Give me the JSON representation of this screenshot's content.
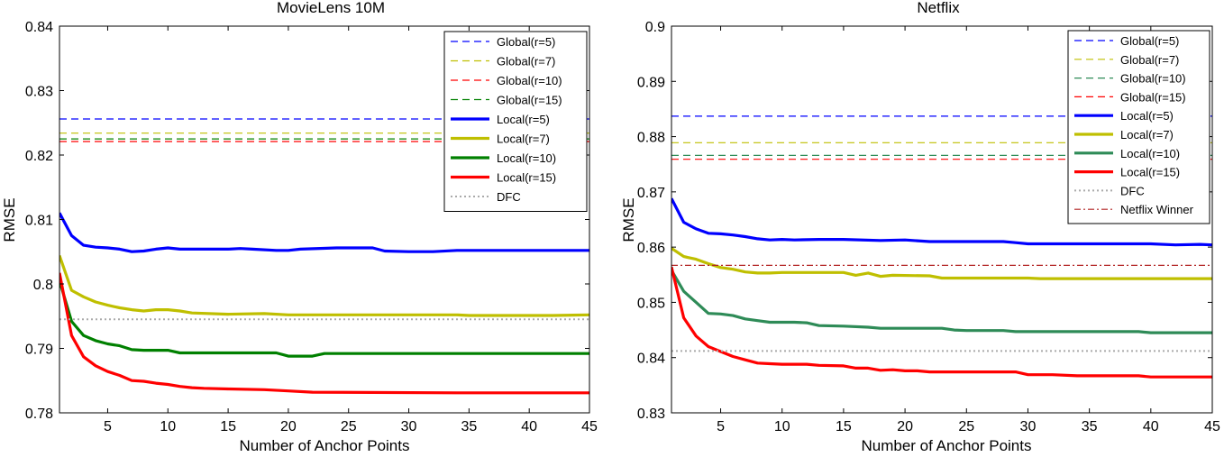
{
  "chart_data": [
    {
      "type": "line",
      "title": "MovieLens 10M",
      "xlabel": "Number of Anchor Points",
      "ylabel": "RMSE",
      "xlim": [
        1,
        45
      ],
      "ylim": [
        0.78,
        0.84
      ],
      "xticks": [
        5,
        10,
        15,
        20,
        25,
        30,
        35,
        40,
        45
      ],
      "xtick_labels": [
        "5",
        "10",
        "15",
        "20",
        "25",
        "30",
        "35",
        "40",
        "45"
      ],
      "yticks": [
        0.78,
        0.79,
        0.8,
        0.81,
        0.82,
        0.83,
        0.84
      ],
      "ytick_labels": [
        "0.78",
        "0.79",
        "0.8",
        "0.81",
        "0.82",
        "0.83",
        "0.84"
      ],
      "legend_position": "top-right",
      "series": [
        {
          "name": "Global(r=5)",
          "color": "#0000ff",
          "style": "dashed",
          "width": "thin",
          "values": [
            [
              1,
              0.8256
            ],
            [
              45,
              0.8256
            ]
          ]
        },
        {
          "name": "Global(r=7)",
          "color": "#bfbf00",
          "style": "dashed",
          "width": "thin",
          "values": [
            [
              1,
              0.8234
            ],
            [
              45,
              0.8234
            ]
          ]
        },
        {
          "name": "Global(r=10)",
          "color": "#ff0000",
          "style": "dashed",
          "width": "thin",
          "values": [
            [
              1,
              0.8221
            ],
            [
              45,
              0.8221
            ]
          ]
        },
        {
          "name": "Global(r=15)",
          "color": "#008000",
          "style": "dashed",
          "width": "thin",
          "values": [
            [
              1,
              0.8225
            ],
            [
              45,
              0.8225
            ]
          ]
        },
        {
          "name": "Local(r=5)",
          "color": "#0000ff",
          "style": "solid",
          "width": "thick",
          "values": [
            [
              1,
              0.811
            ],
            [
              2,
              0.8075
            ],
            [
              3,
              0.806
            ],
            [
              4,
              0.8057
            ],
            [
              5,
              0.8056
            ],
            [
              6,
              0.8054
            ],
            [
              7,
              0.805
            ],
            [
              8,
              0.8051
            ],
            [
              9,
              0.8054
            ],
            [
              10,
              0.8056
            ],
            [
              11,
              0.8054
            ],
            [
              15,
              0.8054
            ],
            [
              16,
              0.8055
            ],
            [
              17,
              0.8054
            ],
            [
              19,
              0.8052
            ],
            [
              20,
              0.8052
            ],
            [
              21,
              0.8054
            ],
            [
              24,
              0.8056
            ],
            [
              27,
              0.8056
            ],
            [
              28,
              0.8051
            ],
            [
              30,
              0.805
            ],
            [
              32,
              0.805
            ],
            [
              34,
              0.8052
            ],
            [
              45,
              0.8052
            ]
          ]
        },
        {
          "name": "Local(r=7)",
          "color": "#bfbf00",
          "style": "solid",
          "width": "thick",
          "values": [
            [
              1,
              0.8044
            ],
            [
              2,
              0.799
            ],
            [
              3,
              0.798
            ],
            [
              4,
              0.7972
            ],
            [
              5,
              0.7967
            ],
            [
              6,
              0.7963
            ],
            [
              7,
              0.796
            ],
            [
              8,
              0.7958
            ],
            [
              9,
              0.796
            ],
            [
              10,
              0.796
            ],
            [
              11,
              0.7958
            ],
            [
              12,
              0.7955
            ],
            [
              15,
              0.7953
            ],
            [
              18,
              0.7954
            ],
            [
              20,
              0.7952
            ],
            [
              25,
              0.7952
            ],
            [
              34,
              0.7952
            ],
            [
              35,
              0.7951
            ],
            [
              42,
              0.7951
            ],
            [
              45,
              0.7952
            ]
          ]
        },
        {
          "name": "Local(r=10)",
          "color": "#008000",
          "style": "solid",
          "width": "thick",
          "values": [
            [
              1,
              0.8005
            ],
            [
              2,
              0.7942
            ],
            [
              3,
              0.792
            ],
            [
              4,
              0.7912
            ],
            [
              5,
              0.7907
            ],
            [
              6,
              0.7904
            ],
            [
              7,
              0.7898
            ],
            [
              8,
              0.7897
            ],
            [
              10,
              0.7897
            ],
            [
              11,
              0.7893
            ],
            [
              19,
              0.7893
            ],
            [
              20,
              0.7888
            ],
            [
              22,
              0.7888
            ],
            [
              23,
              0.7892
            ],
            [
              45,
              0.7892
            ]
          ]
        },
        {
          "name": "Local(r=15)",
          "color": "#ff0000",
          "style": "solid",
          "width": "thick",
          "values": [
            [
              1,
              0.8017
            ],
            [
              2,
              0.792
            ],
            [
              3,
              0.7887
            ],
            [
              4,
              0.7873
            ],
            [
              5,
              0.7864
            ],
            [
              6,
              0.7858
            ],
            [
              7,
              0.785
            ],
            [
              8,
              0.7849
            ],
            [
              9,
              0.7846
            ],
            [
              10,
              0.7844
            ],
            [
              11,
              0.7841
            ],
            [
              12,
              0.7839
            ],
            [
              13,
              0.7838
            ],
            [
              15,
              0.7837
            ],
            [
              18,
              0.7836
            ],
            [
              20,
              0.7834
            ],
            [
              22,
              0.7832
            ],
            [
              34,
              0.7831
            ],
            [
              45,
              0.7831
            ]
          ]
        },
        {
          "name": "DFC",
          "color": "#aaaaaa",
          "style": "dotted",
          "width": "medium",
          "values": [
            [
              1,
              0.7945
            ],
            [
              45,
              0.7945
            ]
          ]
        }
      ]
    },
    {
      "type": "line",
      "title": "Netflix",
      "xlabel": "Number of Anchor Points",
      "ylabel": "RMSE",
      "xlim": [
        1,
        45
      ],
      "ylim": [
        0.83,
        0.9
      ],
      "xticks": [
        5,
        10,
        15,
        20,
        25,
        30,
        35,
        40,
        45
      ],
      "xtick_labels": [
        "5",
        "10",
        "15",
        "20",
        "25",
        "30",
        "35",
        "40",
        "45"
      ],
      "yticks": [
        0.83,
        0.84,
        0.85,
        0.86,
        0.87,
        0.88,
        0.89,
        0.9
      ],
      "ytick_labels": [
        "0.83",
        "0.84",
        "0.85",
        "0.86",
        "0.87",
        "0.88",
        "0.89",
        "0.9"
      ],
      "legend_position": "top-right",
      "series": [
        {
          "name": "Global(r=5)",
          "color": "#0000ff",
          "style": "dashed",
          "width": "thin",
          "values": [
            [
              1,
              0.8837
            ],
            [
              45,
              0.8837
            ]
          ]
        },
        {
          "name": "Global(r=7)",
          "color": "#bfbf00",
          "style": "dashed",
          "width": "thin",
          "values": [
            [
              1,
              0.8789
            ],
            [
              45,
              0.8789
            ]
          ]
        },
        {
          "name": "Global(r=10)",
          "color": "#2e8b57",
          "style": "dashed",
          "width": "thin",
          "values": [
            [
              1,
              0.8766
            ],
            [
              45,
              0.8766
            ]
          ]
        },
        {
          "name": "Global(r=15)",
          "color": "#ff0000",
          "style": "dashed",
          "width": "thin",
          "values": [
            [
              1,
              0.8759
            ],
            [
              45,
              0.8759
            ]
          ]
        },
        {
          "name": "Local(r=5)",
          "color": "#0000ff",
          "style": "solid",
          "width": "thick",
          "values": [
            [
              1,
              0.8688
            ],
            [
              2,
              0.8645
            ],
            [
              3,
              0.8633
            ],
            [
              4,
              0.8625
            ],
            [
              5,
              0.8624
            ],
            [
              6,
              0.8622
            ],
            [
              7,
              0.8619
            ],
            [
              8,
              0.8615
            ],
            [
              9,
              0.8613
            ],
            [
              10,
              0.8614
            ],
            [
              11,
              0.8613
            ],
            [
              13,
              0.8614
            ],
            [
              15,
              0.8614
            ],
            [
              18,
              0.8612
            ],
            [
              20,
              0.8613
            ],
            [
              22,
              0.861
            ],
            [
              28,
              0.861
            ],
            [
              29,
              0.8608
            ],
            [
              30,
              0.8606
            ],
            [
              40,
              0.8606
            ],
            [
              42,
              0.8604
            ],
            [
              44,
              0.8605
            ],
            [
              45,
              0.8604
            ]
          ]
        },
        {
          "name": "Local(r=7)",
          "color": "#bfbf00",
          "style": "solid",
          "width": "thick",
          "values": [
            [
              1,
              0.8598
            ],
            [
              2,
              0.8583
            ],
            [
              3,
              0.8578
            ],
            [
              4,
              0.857
            ],
            [
              5,
              0.8563
            ],
            [
              6,
              0.856
            ],
            [
              7,
              0.8555
            ],
            [
              8,
              0.8553
            ],
            [
              9,
              0.8553
            ],
            [
              10,
              0.8554
            ],
            [
              15,
              0.8554
            ],
            [
              16,
              0.8549
            ],
            [
              17,
              0.8553
            ],
            [
              18,
              0.8547
            ],
            [
              19,
              0.8549
            ],
            [
              22,
              0.8548
            ],
            [
              23,
              0.8544
            ],
            [
              30,
              0.8544
            ],
            [
              31,
              0.8543
            ],
            [
              45,
              0.8543
            ]
          ]
        },
        {
          "name": "Local(r=10)",
          "color": "#2e8b57",
          "style": "solid",
          "width": "thick",
          "values": [
            [
              1,
              0.8558
            ],
            [
              2,
              0.852
            ],
            [
              3,
              0.85
            ],
            [
              4,
              0.848
            ],
            [
              5,
              0.8479
            ],
            [
              6,
              0.8476
            ],
            [
              7,
              0.847
            ],
            [
              8,
              0.8467
            ],
            [
              9,
              0.8464
            ],
            [
              11,
              0.8464
            ],
            [
              12,
              0.8463
            ],
            [
              13,
              0.8458
            ],
            [
              15,
              0.8457
            ],
            [
              17,
              0.8455
            ],
            [
              18,
              0.8453
            ],
            [
              23,
              0.8453
            ],
            [
              24,
              0.845
            ],
            [
              25,
              0.8449
            ],
            [
              28,
              0.8449
            ],
            [
              29,
              0.8447
            ],
            [
              39,
              0.8447
            ],
            [
              40,
              0.8445
            ],
            [
              45,
              0.8445
            ]
          ]
        },
        {
          "name": "Local(r=15)",
          "color": "#ff0000",
          "style": "solid",
          "width": "thick",
          "values": [
            [
              1,
              0.8564
            ],
            [
              2,
              0.8472
            ],
            [
              3,
              0.8439
            ],
            [
              4,
              0.842
            ],
            [
              5,
              0.8411
            ],
            [
              6,
              0.8402
            ],
            [
              7,
              0.8396
            ],
            [
              8,
              0.839
            ],
            [
              9,
              0.8389
            ],
            [
              10,
              0.8388
            ],
            [
              12,
              0.8388
            ],
            [
              13,
              0.8386
            ],
            [
              15,
              0.8385
            ],
            [
              16,
              0.8381
            ],
            [
              17,
              0.8381
            ],
            [
              18,
              0.8377
            ],
            [
              19,
              0.8378
            ],
            [
              20,
              0.8376
            ],
            [
              21,
              0.8376
            ],
            [
              22,
              0.8374
            ],
            [
              29,
              0.8374
            ],
            [
              30,
              0.8369
            ],
            [
              32,
              0.8369
            ],
            [
              34,
              0.8367
            ],
            [
              39,
              0.8367
            ],
            [
              40,
              0.8365
            ],
            [
              45,
              0.8365
            ]
          ]
        },
        {
          "name": "DFC",
          "color": "#aaaaaa",
          "style": "dotted",
          "width": "medium",
          "values": [
            [
              1,
              0.8412
            ],
            [
              45,
              0.8412
            ]
          ]
        },
        {
          "name": "Netflix Winner",
          "color": "#b22222",
          "style": "dashdot",
          "width": "thin",
          "values": [
            [
              1,
              0.8567
            ],
            [
              45,
              0.8567
            ]
          ]
        }
      ]
    }
  ]
}
